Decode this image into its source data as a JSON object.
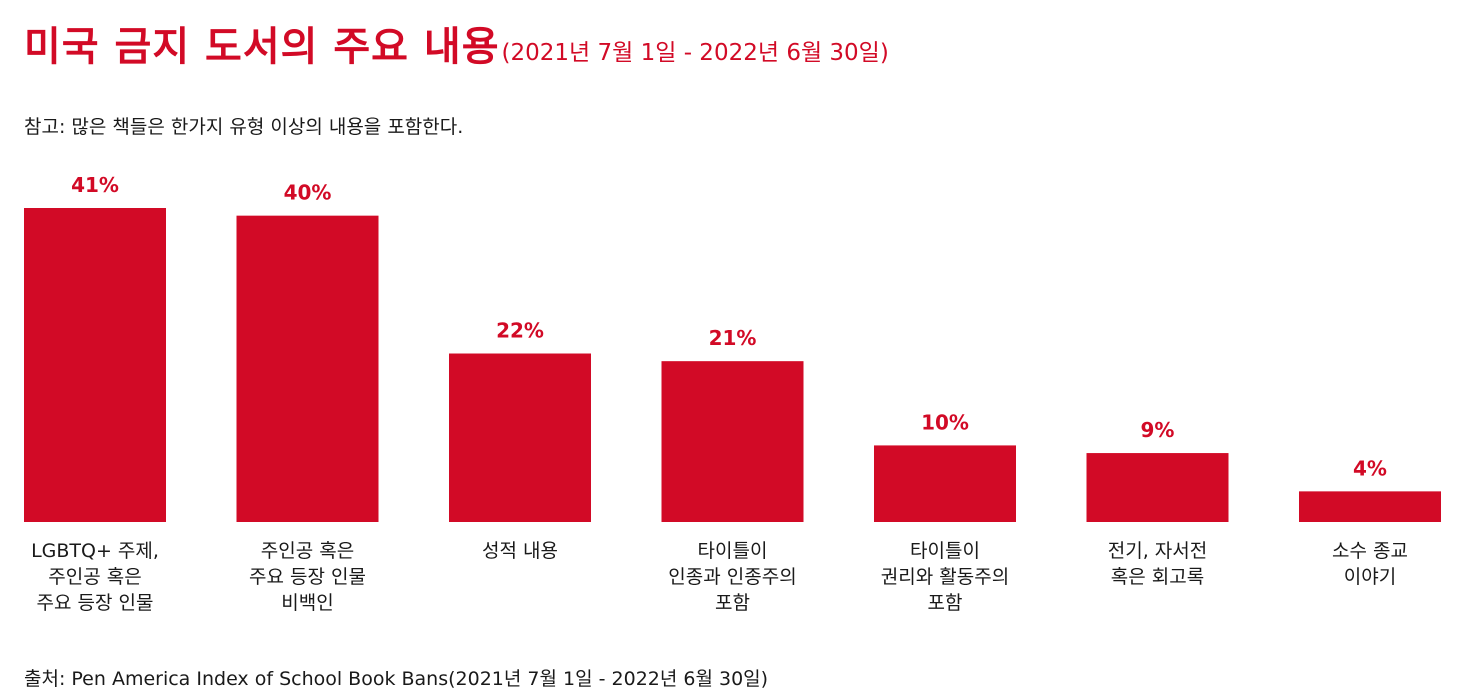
{
  "header": {
    "title": "미국 금지 도서의 주요 내용",
    "subtitle": "(2021년  7월 1일 - 2022년 6월 30일)"
  },
  "note": "참고: 많은 책들은 한가지 유형 이상의 내용을 포함한다.",
  "source": "출처: Pen America Index of School Book Bans(2021년  7월 1일 - 2022년 6월 30일)",
  "colors": {
    "accent": "#d20a26",
    "text": "#1a1a1a"
  },
  "chart_data": {
    "type": "bar",
    "title": "미국 금지 도서의 주요 내용",
    "unit": "%",
    "categories": [
      [
        "LGBTQ+ 주제,",
        "주인공 혹은",
        "주요 등장 인물"
      ],
      [
        "주인공 혹은",
        "주요 등장 인물",
        "비백인"
      ],
      [
        "성적 내용"
      ],
      [
        "타이틀이",
        "인종과 인종주의",
        "포함"
      ],
      [
        "타이틀이",
        "권리와 활동주의",
        "포함"
      ],
      [
        "전기, 자서전",
        "혹은 회고록"
      ],
      [
        "소수 종교",
        "이야기"
      ]
    ],
    "values": [
      41,
      40,
      22,
      21,
      10,
      9,
      4
    ],
    "value_labels": [
      "41%",
      "40%",
      "22%",
      "21%",
      "10%",
      "9%",
      "4%"
    ],
    "ylim": [
      0,
      41
    ],
    "grid": false,
    "legend": "none"
  }
}
